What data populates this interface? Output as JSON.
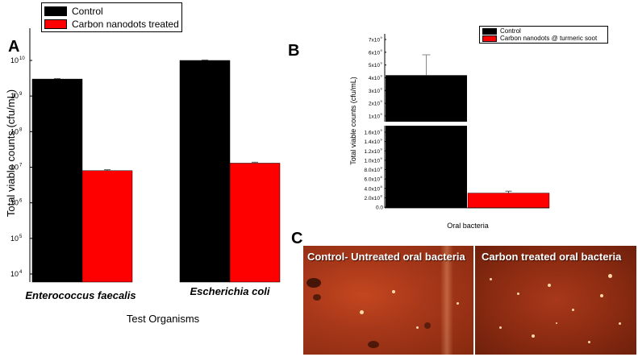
{
  "panels": {
    "a": "A",
    "b": "B",
    "c": "C"
  },
  "chart_data": [
    {
      "type": "bar",
      "panel": "A",
      "categories": [
        "Enterococcus faecalis",
        "Escherichia coli"
      ],
      "series": [
        {
          "name": "Control",
          "color": "#000000",
          "values": [
            3000000000.0,
            10000000000.0
          ],
          "errors": [
            100000000.0,
            300000000.0
          ]
        },
        {
          "name": "Carbon nanodots treated",
          "color": "#ff0000",
          "values": [
            8000000.0,
            13000000.0
          ],
          "errors": [
            500000.0,
            800000.0
          ]
        }
      ],
      "yscale": "log",
      "ylim": [
        10000.0,
        10000000000.0
      ],
      "ytick_exponents": [
        "10",
        "9",
        "8",
        "7",
        "6",
        "5",
        "4"
      ],
      "ylabel": "Total viable counts (cfu/mL)",
      "xlabel": "Test Organisms",
      "legend": "top-left"
    },
    {
      "type": "bar",
      "panel": "B",
      "categories": [
        "Oral bacteria"
      ],
      "series": [
        {
          "name": "Control",
          "color": "#000000",
          "values": [
            4200000000.0
          ],
          "errors": [
            1600000000.0
          ]
        },
        {
          "name": "Carbon nanodots @ turmeric soot",
          "color": "#ff0000",
          "values": [
            300000000.0
          ],
          "errors": [
            40000000.0
          ]
        }
      ],
      "yscale": "broken-linear",
      "upper_ticks": [
        "7x10",
        "6x10",
        "5x10",
        "4x10",
        "3x10",
        "2x10",
        "1x10"
      ],
      "lower_ticks": [
        "1.6x10",
        "1.4x10",
        "1.2x10",
        "1.0x10",
        "8.0x10",
        "6.0x10",
        "4.0x10",
        "2.0x10",
        "0.0"
      ],
      "ylabel": "Total viable counts (cfu/mL)",
      "xlabel": "Oral bacteria",
      "legend": "top-right"
    }
  ],
  "micrographs": {
    "left_label": "Control- Untreated oral bacteria",
    "right_label": "Carbon treated oral bacteria"
  }
}
